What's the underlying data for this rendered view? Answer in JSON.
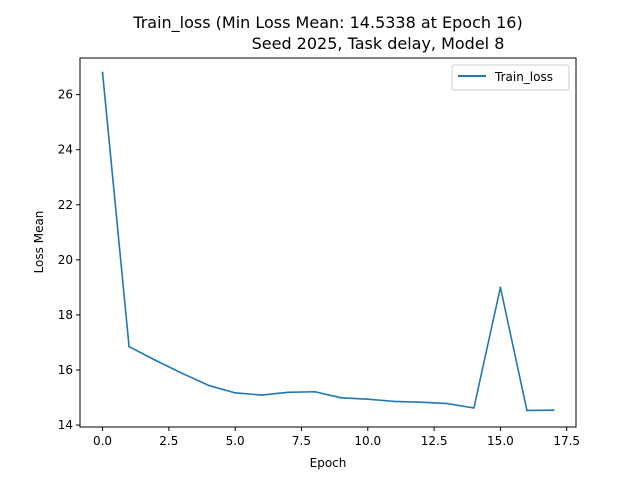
{
  "chart_data": {
    "type": "line",
    "title_line1": "Train_loss (Min Loss Mean: 14.5338 at Epoch 16)",
    "title_line2": "Seed 2025, Task delay, Model 8",
    "xlabel": "Epoch",
    "ylabel": "Loss Mean",
    "xlim": [
      -0.85,
      17.85
    ],
    "ylim": [
      13.93,
      27.33
    ],
    "x_ticks": [
      0.0,
      2.5,
      5.0,
      7.5,
      10.0,
      12.5,
      15.0,
      17.5
    ],
    "x_tick_labels": [
      "0.0",
      "2.5",
      "5.0",
      "7.5",
      "10.0",
      "12.5",
      "15.0",
      "17.5"
    ],
    "y_ticks": [
      14,
      16,
      18,
      20,
      22,
      24,
      26
    ],
    "y_tick_labels": [
      "14",
      "16",
      "18",
      "20",
      "22",
      "24",
      "26"
    ],
    "grid": false,
    "legend_position": "top-right",
    "series": [
      {
        "name": "Train_loss",
        "color": "#1f77b4",
        "x": [
          0,
          1,
          2,
          3,
          4,
          5,
          6,
          7,
          8,
          9,
          10,
          11,
          12,
          13,
          14,
          15,
          16,
          17
        ],
        "values": [
          26.8,
          16.85,
          16.35,
          15.88,
          15.44,
          15.17,
          15.09,
          15.19,
          15.21,
          14.99,
          14.94,
          14.86,
          14.83,
          14.78,
          14.62,
          19.0,
          14.53,
          14.54
        ]
      }
    ]
  }
}
